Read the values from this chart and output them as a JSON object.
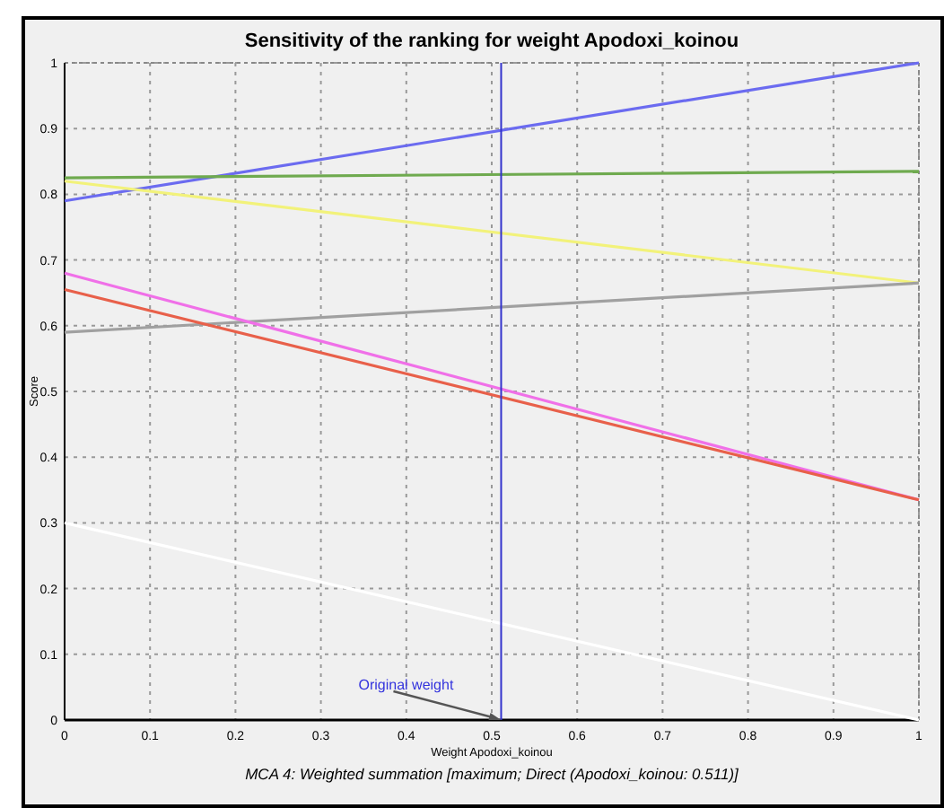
{
  "chart_data": {
    "type": "line",
    "title": "Sensitivity of the ranking for weight Apodoxi_koinou",
    "xlabel": "Weight Apodoxi_koinou",
    "ylabel": "Score",
    "x": [
      0,
      1
    ],
    "series": [
      {
        "color": "#6b6bf0",
        "values": [
          0.79,
          1.0
        ]
      },
      {
        "color": "#6faa4f",
        "values": [
          0.825,
          0.835
        ]
      },
      {
        "color": "#f2f27a",
        "values": [
          0.82,
          0.665
        ]
      },
      {
        "color": "#a0a0a0",
        "values": [
          0.59,
          0.665
        ]
      },
      {
        "color": "#f070e8",
        "values": [
          0.68,
          0.335
        ]
      },
      {
        "color": "#e8604a",
        "values": [
          0.655,
          0.335
        ]
      },
      {
        "color": "#ffffff",
        "values": [
          0.3,
          0.0
        ]
      }
    ],
    "xlim": [
      0,
      1
    ],
    "ylim": [
      0,
      1
    ],
    "xticks": [
      0,
      0.1,
      0.2,
      0.3,
      0.4,
      0.5,
      0.6,
      0.7,
      0.8,
      0.9,
      1
    ],
    "yticks": [
      0,
      0.1,
      0.2,
      0.3,
      0.4,
      0.5,
      0.6,
      0.7,
      0.8,
      0.9,
      1
    ],
    "grid": true,
    "ref_lines": [
      {
        "axis": "x",
        "value": 0.511,
        "color": "#3333cc"
      }
    ],
    "annotations": [
      {
        "text": "Original weight",
        "x": 0.511,
        "y": 0
      },
      "MCA 4: Weighted summation [maximum; Direct (Apodoxi_koinou: 0.511)]"
    ]
  }
}
